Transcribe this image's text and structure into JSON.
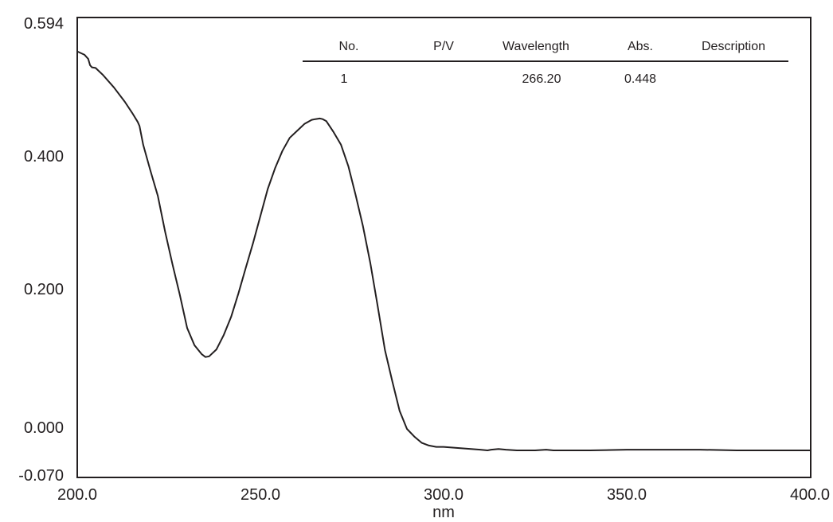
{
  "chart_data": {
    "type": "line",
    "title": "",
    "xlabel": "nm",
    "ylabel": "",
    "xlim": [
      200.0,
      400.0
    ],
    "ylim": [
      -0.07,
      0.594
    ],
    "x_ticks": [
      "200.0",
      "250.0",
      "300.0",
      "350.0",
      "400.0"
    ],
    "y_ticks": [
      "0.594",
      "0.400",
      "0.200",
      "0.000",
      "-0.070"
    ],
    "grid": false,
    "series": [
      {
        "x": [
          200.0,
          202.0,
          203.0,
          203.5,
          204.0,
          205.0,
          207.0,
          210.0,
          213.0,
          215.0,
          216.5,
          217.0,
          218.0,
          220.0,
          222.0,
          224.0,
          226.0,
          228.0,
          230.0,
          232.0,
          234.0,
          235.0,
          236.0,
          238.0,
          240.0,
          242.0,
          244.0,
          246.0,
          248.0,
          250.0,
          252.0,
          254.0,
          256.0,
          258.0,
          260.0,
          262.0,
          264.0,
          265.0,
          266.2,
          267.0,
          268.0,
          270.0,
          272.0,
          274.0,
          276.0,
          278.0,
          280.0,
          282.0,
          284.0,
          286.0,
          288.0,
          290.0,
          292.0,
          294.0,
          296.0,
          298.0,
          300.0,
          305.0,
          310.0,
          312.0,
          313.0,
          315.0,
          317.0,
          320.0,
          325.0,
          328.0,
          330.0,
          340.0,
          350.0,
          360.0,
          370.0,
          380.0,
          390.0,
          400.0
        ],
        "y": [
          0.545,
          0.54,
          0.534,
          0.525,
          0.522,
          0.521,
          0.511,
          0.493,
          0.472,
          0.456,
          0.443,
          0.437,
          0.41,
          0.372,
          0.336,
          0.284,
          0.237,
          0.193,
          0.145,
          0.12,
          0.107,
          0.103,
          0.104,
          0.114,
          0.135,
          0.161,
          0.195,
          0.232,
          0.268,
          0.307,
          0.346,
          0.376,
          0.401,
          0.42,
          0.43,
          0.44,
          0.446,
          0.447,
          0.448,
          0.447,
          0.444,
          0.428,
          0.41,
          0.379,
          0.337,
          0.292,
          0.239,
          0.177,
          0.113,
          0.068,
          0.025,
          -0.001,
          -0.012,
          -0.021,
          -0.025,
          -0.027,
          -0.027,
          -0.029,
          -0.031,
          -0.032,
          -0.031,
          -0.03,
          -0.031,
          -0.032,
          -0.032,
          -0.031,
          -0.032,
          -0.032,
          -0.031,
          -0.031,
          -0.031,
          -0.032,
          -0.032,
          -0.032
        ]
      }
    ],
    "peak_table": {
      "headers": [
        "No.",
        "P/V",
        "Wavelength",
        "Abs.",
        "Description"
      ],
      "rows": [
        [
          "1",
          "",
          "266.20",
          "0.448",
          ""
        ]
      ]
    }
  }
}
